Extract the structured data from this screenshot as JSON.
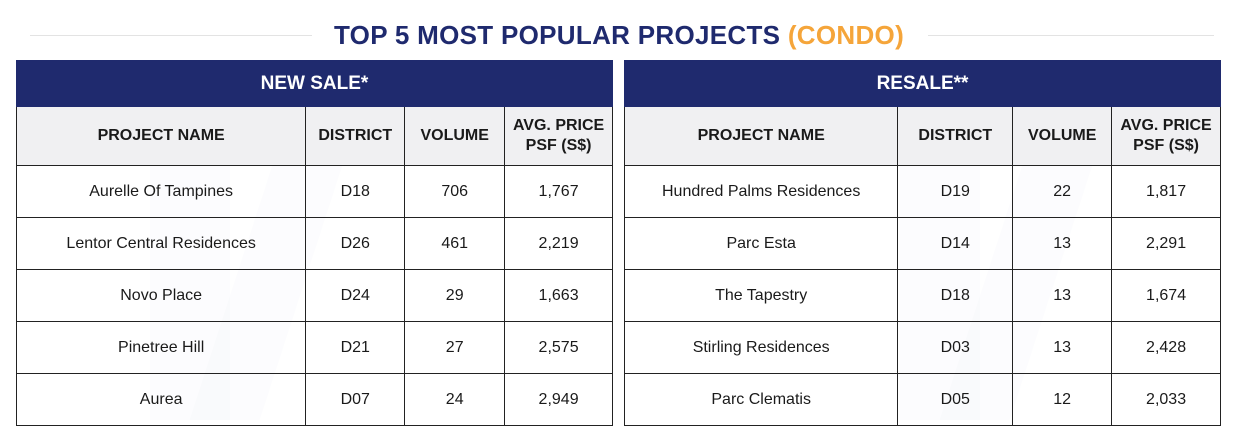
{
  "title": {
    "main": "TOP 5 MOST POPULAR PROJECTS",
    "accent": "(CONDO)"
  },
  "colors": {
    "navy": "#1f2a6e",
    "accent": "#f5a53a",
    "header_bg": "#f0f0f2"
  },
  "columns": [
    "PROJECT NAME",
    "DISTRICT",
    "VOLUME",
    "AVG. PRICE PSF (S$)"
  ],
  "new_sale": {
    "heading": "NEW SALE*",
    "rows": [
      [
        "Aurelle Of Tampines",
        "D18",
        "706",
        "1,767"
      ],
      [
        "Lentor Central Residences",
        "D26",
        "461",
        "2,219"
      ],
      [
        "Novo Place",
        "D24",
        "29",
        "1,663"
      ],
      [
        "Pinetree Hill",
        "D21",
        "27",
        "2,575"
      ],
      [
        "Aurea",
        "D07",
        "24",
        "2,949"
      ]
    ]
  },
  "resale": {
    "heading": "RESALE**",
    "rows": [
      [
        "Hundred Palms Residences",
        "D19",
        "22",
        "1,817"
      ],
      [
        "Parc Esta",
        "D14",
        "13",
        "2,291"
      ],
      [
        "The Tapestry",
        "D18",
        "13",
        "1,674"
      ],
      [
        "Stirling Residences",
        "D03",
        "13",
        "2,428"
      ],
      [
        "Parc Clematis",
        "D05",
        "12",
        "2,033"
      ]
    ]
  }
}
